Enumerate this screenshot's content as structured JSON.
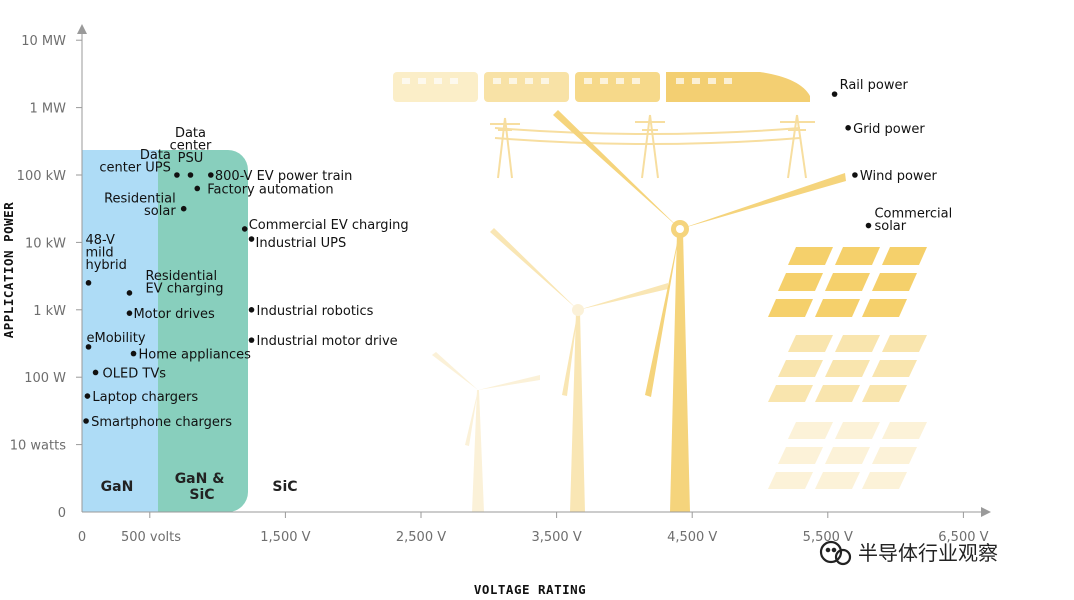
{
  "chart_data": {
    "type": "scatter",
    "title": "",
    "xlabel": "VOLTAGE RATING",
    "ylabel": "APPLICATION POWER",
    "x_ticks": [
      "0",
      "500 volts",
      "1,500 V",
      "2,500 V",
      "3,500 V",
      "4,500 V",
      "5,500 V",
      "6,500 V"
    ],
    "y_ticks": [
      "0",
      "10 watts",
      "100 W",
      "1 kW",
      "10 kW",
      "100 kW",
      "1 MW",
      "10 MW"
    ],
    "regions": [
      {
        "name": "GaN",
        "color": "#aedcf6"
      },
      {
        "name": "GaN & SiC",
        "color": "#88cfbd"
      },
      {
        "name": "SiC",
        "color": "#ffffff"
      }
    ],
    "points": [
      {
        "label": "Rail power",
        "x": 5550,
        "y": 6.2
      },
      {
        "label": "Grid power",
        "x": 5650,
        "y": 5.7
      },
      {
        "label": "Wind power",
        "x": 5700,
        "y": 5.0
      },
      {
        "label": "Commercial solar",
        "x": 5800,
        "y": 4.25
      },
      {
        "label": "Data center PSU",
        "x": 800,
        "y": 5.0
      },
      {
        "label": "Data center UPS",
        "x": 700,
        "y": 5.0
      },
      {
        "label": "800-V EV power train",
        "x": 950,
        "y": 5.0
      },
      {
        "label": "Factory automation",
        "x": 850,
        "y": 4.8
      },
      {
        "label": "Residential solar",
        "x": 750,
        "y": 4.5
      },
      {
        "label": "Commercial EV charging",
        "x": 1200,
        "y": 4.2
      },
      {
        "label": "Industrial UPS",
        "x": 1250,
        "y": 4.05
      },
      {
        "label": "48-V mild hybrid",
        "x": 48,
        "y": 3.4
      },
      {
        "label": "Residential EV charging",
        "x": 350,
        "y": 3.25
      },
      {
        "label": "Motor drives",
        "x": 350,
        "y": 2.95
      },
      {
        "label": "Industrial robotics",
        "x": 1250,
        "y": 3.0
      },
      {
        "label": "eMobility",
        "x": 48,
        "y": 2.45
      },
      {
        "label": "Home appliances",
        "x": 380,
        "y": 2.35
      },
      {
        "label": "Industrial motor drive",
        "x": 1250,
        "y": 2.55
      },
      {
        "label": "OLED TVs",
        "x": 100,
        "y": 2.07
      },
      {
        "label": "Laptop chargers",
        "x": 40,
        "y": 1.72
      },
      {
        "label": "Smartphone chargers",
        "x": 30,
        "y": 1.35
      }
    ]
  },
  "watermark": "半导体行业观察"
}
